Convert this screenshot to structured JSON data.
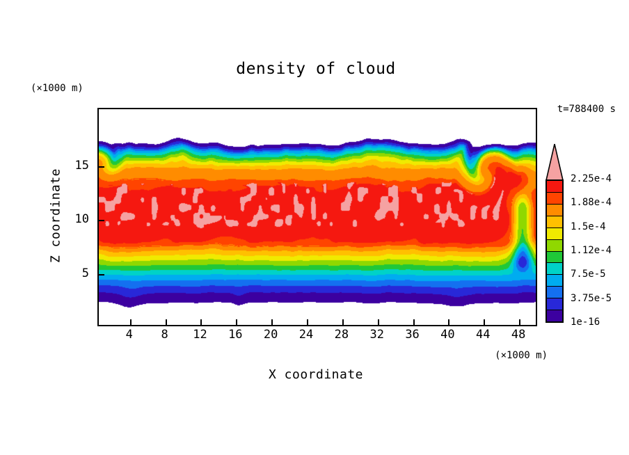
{
  "title": "density of cloud",
  "time_label": "t=788400 s",
  "x_axis": {
    "label": "X coordinate",
    "unit": "(×1000 m)",
    "ticks": [
      4,
      8,
      12,
      16,
      20,
      24,
      28,
      32,
      36,
      40,
      44,
      48
    ]
  },
  "y_axis": {
    "label": "Z coordinate",
    "unit": "(×1000 m)",
    "ticks": [
      5,
      10,
      15
    ]
  },
  "colorbar": {
    "labels": [
      "2.25e-4",
      "1.88e-4",
      "1.5e-4",
      "1.12e-4",
      "7.5e-5",
      "3.75e-5",
      "1e-16"
    ]
  },
  "chart_data": {
    "type": "heatmap",
    "title": "density of cloud",
    "xlabel": "X coordinate (×1000 m)",
    "ylabel": "Z coordinate (×1000 m)",
    "time": "t=788400 s",
    "x_range": [
      0.4,
      49.8
    ],
    "z_range": [
      0.3,
      20.4
    ],
    "grid": false,
    "legend_position": "right-colorbar",
    "levels": [
      1e-16,
      1.875e-05,
      3.75e-05,
      5.625e-05,
      7.5e-05,
      9.375e-05,
      0.0001125,
      0.00013125,
      0.00015,
      0.00016875,
      0.0001875,
      0.00020625,
      0.000225
    ],
    "colors": [
      "#3c00a0",
      "#2828d8",
      "#1470f0",
      "#00acf0",
      "#00d2c8",
      "#20c838",
      "#90d800",
      "#f0ea00",
      "#ffc000",
      "#ff8c00",
      "#ff4400",
      "#f51810"
    ],
    "overflow_color": "#f5a2a2",
    "background_color": "#ffffff",
    "cloud_extent": {
      "z_bottom": 2.35,
      "z_top": 17.15
    },
    "cloud_profile": [
      [
        2.35,
        1e-09
      ],
      [
        3.25,
        1.875e-05
      ],
      [
        3.9,
        3.75e-05
      ],
      [
        4.45,
        5.625e-05
      ],
      [
        4.95,
        7.5e-05
      ],
      [
        5.4,
        9.375e-05
      ],
      [
        5.85,
        0.0001125
      ],
      [
        6.3,
        0.00013125
      ],
      [
        6.75,
        0.00015
      ],
      [
        7.2,
        0.00016875
      ],
      [
        7.6,
        0.0001875
      ],
      [
        8.0,
        0.00020625
      ],
      [
        8.6,
        0.000216
      ],
      [
        10.5,
        0.00022
      ],
      [
        12.5,
        0.000218
      ],
      [
        13.3,
        0.000206
      ],
      [
        13.9,
        0.0001875
      ],
      [
        14.9,
        0.00016875
      ],
      [
        15.25,
        0.00015
      ],
      [
        15.55,
        0.00013125
      ],
      [
        15.8,
        0.0001125
      ],
      [
        16.05,
        9.375e-05
      ],
      [
        16.3,
        7.5e-05
      ],
      [
        16.5,
        5.625e-05
      ],
      [
        16.65,
        3.75e-05
      ],
      [
        16.85,
        1.875e-05
      ],
      [
        17.15,
        1e-09
      ]
    ],
    "vortices": [
      {
        "x": 44.2,
        "z": 14.4,
        "r": 3.6,
        "s": -2.6
      },
      {
        "x": 48.6,
        "z": 13.6,
        "r": 2.4,
        "s": 2.2
      },
      {
        "x": 1.0,
        "z": 15.2,
        "r": 2.6,
        "s": 1.8
      }
    ],
    "top_bumps": [
      {
        "x": 9.8,
        "w": 1.0,
        "h": 0.45
      },
      {
        "x": 31.5,
        "w": 2.6,
        "h": 0.4
      },
      {
        "x": 41.2,
        "w": 0.8,
        "h": 0.45
      }
    ],
    "bottom_bumps": [
      {
        "x": 3.8,
        "w": 0.9,
        "h": 0.35
      },
      {
        "x": 16.2,
        "w": 0.5,
        "h": 0.25
      },
      {
        "x": 40.8,
        "w": 1.0,
        "h": 0.3
      }
    ],
    "plume": {
      "x": 48.3,
      "w": 0.8,
      "a": 0.000105
    }
  }
}
